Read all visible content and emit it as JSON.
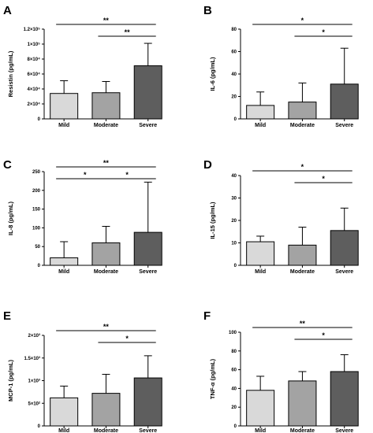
{
  "chart_data": [
    {
      "panel": "A",
      "type": "bar",
      "categories": [
        "Mild",
        "Moderate",
        "Severe"
      ],
      "values": [
        34000,
        35000,
        71000
      ],
      "errors": [
        17000,
        15000,
        30000
      ],
      "ylabel": "Resistin (pg/mL)",
      "ylim": [
        0,
        120000
      ],
      "yticks": [
        0,
        20000,
        40000,
        60000,
        80000,
        100000,
        120000
      ],
      "ytick_labels": [
        "0",
        "2×10⁴",
        "4×10⁴",
        "6×10⁴",
        "8×10⁴",
        "1×10⁵",
        "1.2×10⁵"
      ],
      "bar_colors": [
        "#d9d9d9",
        "#a3a3a3",
        "#5e5e5e"
      ],
      "significance": [
        {
          "from": 0,
          "to": 2,
          "label": "**"
        },
        {
          "from": 1,
          "to": 2,
          "label": "**"
        }
      ]
    },
    {
      "panel": "B",
      "type": "bar",
      "categories": [
        "Mild",
        "Moderate",
        "Severe"
      ],
      "values": [
        12,
        15,
        31
      ],
      "errors": [
        12,
        17,
        32
      ],
      "ylabel": "IL-6 (pg/mL)",
      "ylim": [
        0,
        80
      ],
      "yticks": [
        0,
        20,
        40,
        60,
        80
      ],
      "ytick_labels": [
        "0",
        "20",
        "40",
        "60",
        "80"
      ],
      "bar_colors": [
        "#d9d9d9",
        "#a3a3a3",
        "#5e5e5e"
      ],
      "significance": [
        {
          "from": 0,
          "to": 2,
          "label": "*"
        },
        {
          "from": 1,
          "to": 2,
          "label": "*"
        }
      ]
    },
    {
      "panel": "C",
      "type": "bar",
      "categories": [
        "Mild",
        "Moderate",
        "Severe"
      ],
      "values": [
        20,
        60,
        88
      ],
      "errors": [
        43,
        44,
        134
      ],
      "ylabel": "IL-8 (pg/mL)",
      "ylim": [
        0,
        250
      ],
      "yticks": [
        0,
        50,
        100,
        150,
        200,
        250
      ],
      "ytick_labels": [
        "0",
        "50",
        "100",
        "150",
        "200",
        "250"
      ],
      "bar_colors": [
        "#d9d9d9",
        "#a3a3a3",
        "#5e5e5e"
      ],
      "significance": [
        {
          "from": 0,
          "to": 2,
          "label": "**"
        },
        {
          "from": 0,
          "to": 1,
          "label": "*"
        },
        {
          "from": 1,
          "to": 2,
          "label": "*"
        }
      ]
    },
    {
      "panel": "D",
      "type": "bar",
      "categories": [
        "Mild",
        "Moderate",
        "Severe"
      ],
      "values": [
        10.5,
        9,
        15.5
      ],
      "errors": [
        2.5,
        8,
        10
      ],
      "ylabel": "IL-15 (pg/mL)",
      "ylim": [
        0,
        40
      ],
      "yticks": [
        0,
        10,
        20,
        30,
        40
      ],
      "ytick_labels": [
        "0",
        "10",
        "20",
        "30",
        "40"
      ],
      "bar_colors": [
        "#d9d9d9",
        "#a3a3a3",
        "#5e5e5e"
      ],
      "significance": [
        {
          "from": 0,
          "to": 2,
          "label": "*"
        },
        {
          "from": 1,
          "to": 2,
          "label": "*"
        }
      ]
    },
    {
      "panel": "E",
      "type": "bar",
      "categories": [
        "Mild",
        "Moderate",
        "Severe"
      ],
      "values": [
        620,
        720,
        1060
      ],
      "errors": [
        260,
        420,
        490
      ],
      "ylabel": "MCP-1 (pg/mL)",
      "ylim": [
        0,
        2000
      ],
      "yticks": [
        0,
        500,
        1000,
        1500,
        2000
      ],
      "ytick_labels": [
        "0",
        "5×10²",
        "1×10³",
        "1.5×10³",
        "2×10³"
      ],
      "bar_colors": [
        "#d9d9d9",
        "#a3a3a3",
        "#5e5e5e"
      ],
      "significance": [
        {
          "from": 0,
          "to": 2,
          "label": "**"
        },
        {
          "from": 1,
          "to": 2,
          "label": "*"
        }
      ]
    },
    {
      "panel": "F",
      "type": "bar",
      "categories": [
        "Mild",
        "Moderate",
        "Severe"
      ],
      "values": [
        38,
        48,
        58
      ],
      "errors": [
        15,
        10,
        18
      ],
      "ylabel": "TNF-α (pg/mL)",
      "ylim": [
        0,
        100
      ],
      "yticks": [
        0,
        20,
        40,
        60,
        80,
        100
      ],
      "ytick_labels": [
        "0",
        "20",
        "40",
        "60",
        "80",
        "100"
      ],
      "bar_colors": [
        "#d9d9d9",
        "#a3a3a3",
        "#5e5e5e"
      ],
      "significance": [
        {
          "from": 0,
          "to": 2,
          "label": "**"
        },
        {
          "from": 1,
          "to": 2,
          "label": "*"
        }
      ]
    }
  ]
}
